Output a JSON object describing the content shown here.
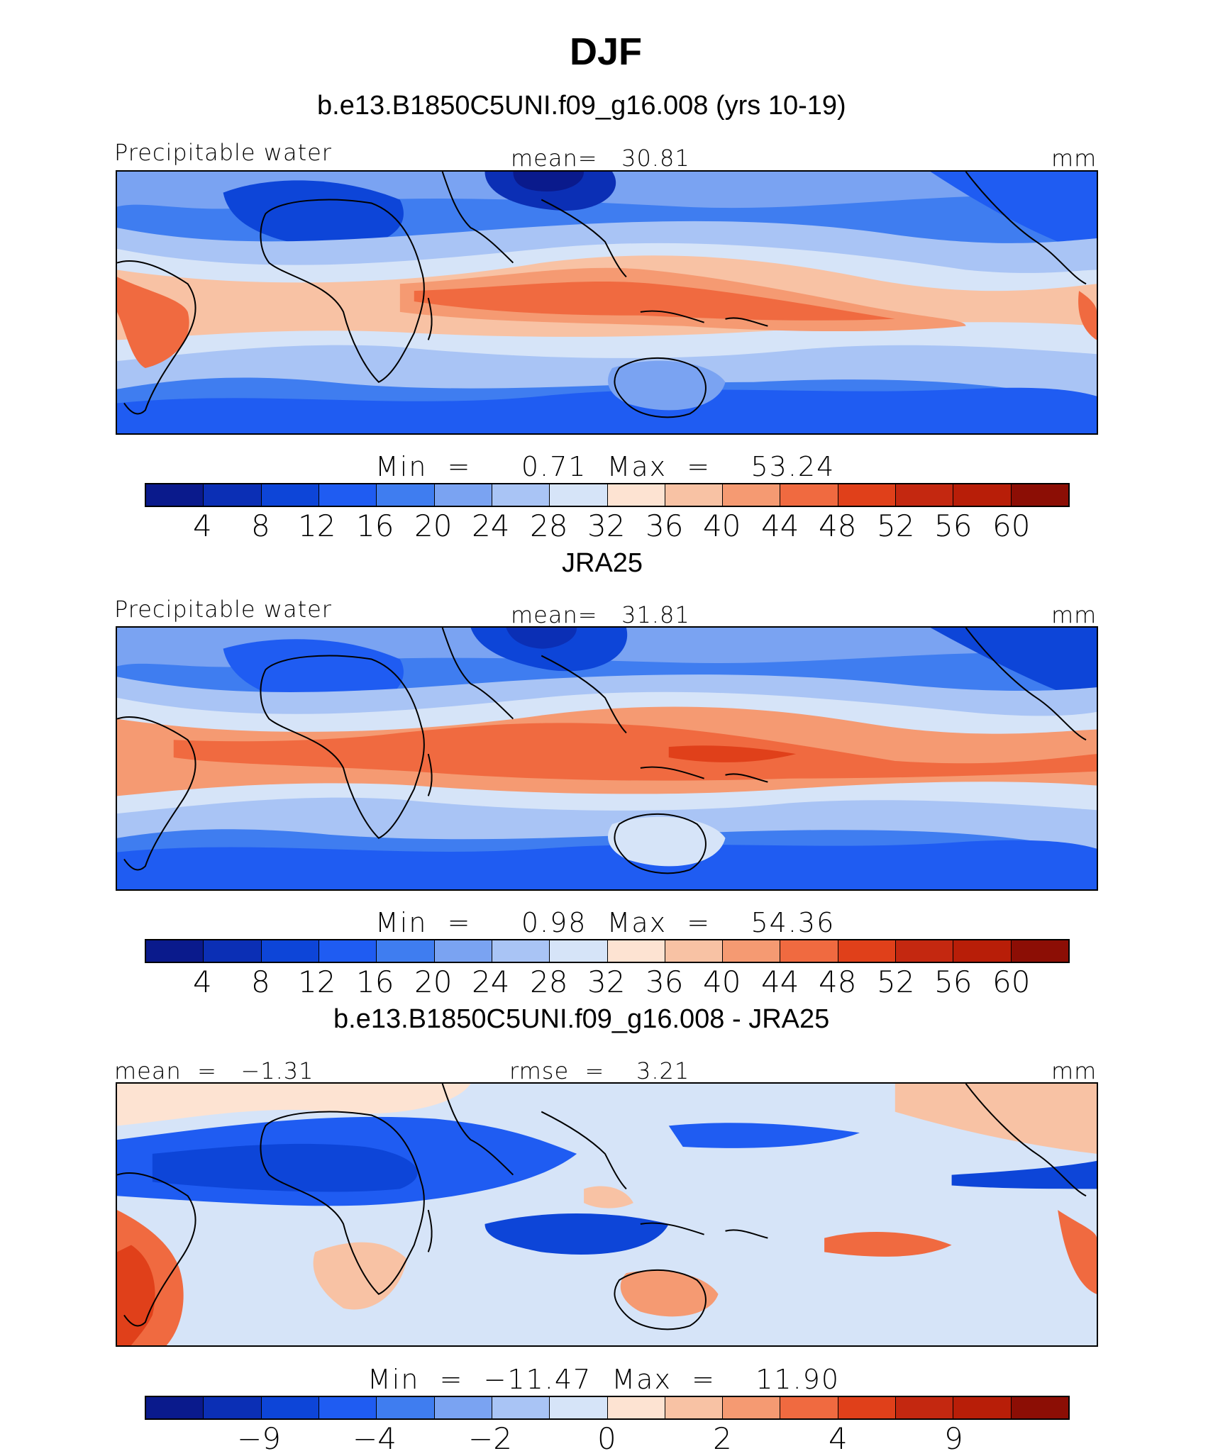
{
  "title": "DJF",
  "panels": [
    {
      "subtitle": "b.e13.B1850C5UNI.f09_g16.008 (yrs 10-19)",
      "left_label": "Precipitable water",
      "center_label": "mean=   30.81",
      "units": "mm",
      "stats": "Min  =     0.71  Max  =    53.24",
      "ticks": [
        "4",
        "8",
        "12",
        "16",
        "20",
        "24",
        "28",
        "32",
        "36",
        "40",
        "44",
        "48",
        "52",
        "56",
        "60"
      ]
    },
    {
      "subtitle": "JRA25",
      "left_label": "Precipitable water",
      "center_label": "mean=   31.81",
      "units": "mm",
      "stats": "Min  =     0.98  Max  =    54.36",
      "ticks": [
        "4",
        "8",
        "12",
        "16",
        "20",
        "24",
        "28",
        "32",
        "36",
        "40",
        "44",
        "48",
        "52",
        "56",
        "60"
      ]
    },
    {
      "subtitle": "b.e13.B1850C5UNI.f09_g16.008 - JRA25",
      "left_label": "mean  =   −1.31",
      "center_label": "rmse  =    3.21",
      "units": "mm",
      "stats": "Min  =  −11.47  Max  =    11.90",
      "ticks": [
        "−9",
        "−4",
        "−2",
        "0",
        "2",
        "4",
        "9"
      ]
    }
  ],
  "colors": [
    "#0a1a8c",
    "#0b2fb5",
    "#0d45d8",
    "#1f5cf2",
    "#3f7df0",
    "#7aa3f2",
    "#a9c4f5",
    "#d6e4f8",
    "#fde3d2",
    "#f8c2a4",
    "#f59a72",
    "#f06a40",
    "#e0401a",
    "#c42810",
    "#b81e08",
    "#8c0e05"
  ],
  "chart_data": [
    {
      "type": "heatmap",
      "title": "b.e13.B1850C5UNI.f09_g16.008 (yrs 10-19)",
      "variable": "Precipitable water",
      "units": "mm",
      "mean": 30.81,
      "min": 0.71,
      "max": 53.24,
      "levels": [
        4,
        8,
        12,
        16,
        20,
        24,
        28,
        32,
        36,
        40,
        44,
        48,
        52,
        56,
        60
      ]
    },
    {
      "type": "heatmap",
      "title": "JRA25",
      "variable": "Precipitable water",
      "units": "mm",
      "mean": 31.81,
      "min": 0.98,
      "max": 54.36,
      "levels": [
        4,
        8,
        12,
        16,
        20,
        24,
        28,
        32,
        36,
        40,
        44,
        48,
        52,
        56,
        60
      ]
    },
    {
      "type": "heatmap",
      "title": "b.e13.B1850C5UNI.f09_g16.008 - JRA25",
      "units": "mm",
      "mean": -1.31,
      "rmse": 3.21,
      "min": -11.47,
      "max": 11.9,
      "levels": [
        -9,
        -4,
        -2,
        0,
        2,
        4,
        9
      ]
    }
  ]
}
